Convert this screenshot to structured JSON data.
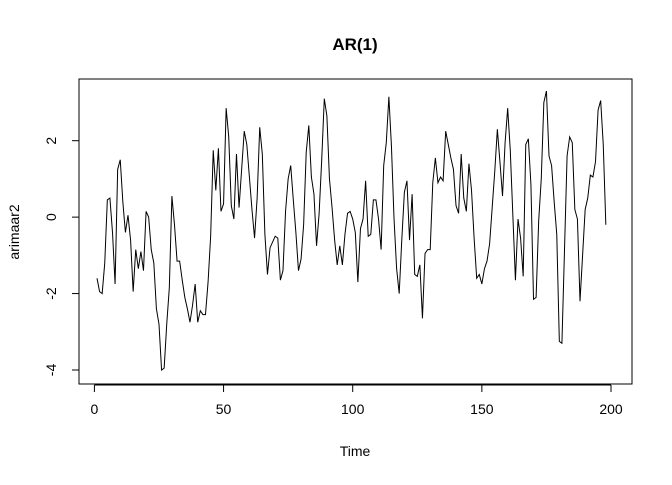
{
  "chart_data": {
    "type": "line",
    "title": "AR(1)",
    "xlabel": "Time",
    "ylabel": "arimaar2",
    "xlim": [
      1,
      200
    ],
    "ylim": [
      -4,
      3.3
    ],
    "x_ticks": [
      0,
      50,
      100,
      150,
      200
    ],
    "y_ticks": [
      -4,
      -2,
      0,
      2
    ],
    "x_tick_labels": [
      "0",
      "50",
      "100",
      "150",
      "200"
    ],
    "y_tick_labels": [
      "-4",
      "-2",
      "0",
      "2"
    ],
    "grid": false,
    "legend": "none",
    "line_color": "#000000",
    "series": [
      {
        "x_start": 1,
        "x_step": 1,
        "values": [
          -1.6,
          -1.95,
          -2.0,
          -1.2,
          0.45,
          0.5,
          -0.4,
          -1.75,
          1.25,
          1.5,
          0.4,
          -0.4,
          0.05,
          -0.6,
          -1.95,
          -0.85,
          -1.35,
          -0.9,
          -1.4,
          0.15,
          0.0,
          -0.85,
          -1.2,
          -2.4,
          -2.8,
          -4.0,
          -3.95,
          -2.8,
          -1.85,
          0.55,
          -0.2,
          -1.15,
          -1.15,
          -1.65,
          -2.1,
          -2.4,
          -2.75,
          -2.3,
          -1.75,
          -2.75,
          -2.45,
          -2.55,
          -2.55,
          -1.7,
          -0.5,
          1.75,
          0.7,
          1.8,
          0.15,
          0.35,
          2.85,
          2.1,
          0.3,
          -0.05,
          1.65,
          0.25,
          1.25,
          2.25,
          1.9,
          1.05,
          0.2,
          -0.55,
          0.5,
          2.35,
          1.65,
          -0.45,
          -1.5,
          -0.8,
          -0.65,
          -0.5,
          -0.55,
          -1.65,
          -1.4,
          0.15,
          1.0,
          1.35,
          0.45,
          -0.4,
          -1.4,
          -1.1,
          -0.2,
          1.7,
          2.4,
          1.05,
          0.6,
          -0.75,
          0.1,
          1.5,
          3.1,
          2.65,
          1.0,
          0.25,
          -0.6,
          -1.25,
          -0.75,
          -1.25,
          -0.45,
          0.1,
          0.15,
          -0.05,
          -0.4,
          -1.7,
          -0.3,
          -0.05,
          0.95,
          -0.5,
          -0.45,
          0.45,
          0.45,
          -0.05,
          -0.85,
          1.35,
          1.95,
          3.15,
          1.85,
          -0.05,
          -1.35,
          -2.0,
          -0.6,
          0.65,
          0.95,
          -0.6,
          0.6,
          -1.5,
          -1.55,
          -1.25,
          -2.65,
          -0.95,
          -0.85,
          -0.85,
          0.9,
          1.55,
          0.9,
          1.05,
          0.95,
          2.25,
          1.9,
          1.55,
          1.25,
          0.3,
          0.1,
          1.65,
          0.5,
          0.15,
          1.4,
          0.7,
          -0.55,
          -1.6,
          -1.5,
          -1.75,
          -1.35,
          -1.15,
          -0.7,
          0.25,
          1.2,
          2.3,
          1.45,
          0.55,
          1.95,
          2.85,
          1.75,
          0.05,
          -1.65,
          -0.05,
          -0.55,
          -1.55,
          1.9,
          2.05,
          0.85,
          -2.15,
          -2.1,
          -0.1,
          1.0,
          3.0,
          3.3,
          1.6,
          1.35,
          0.4,
          -0.45,
          -3.25,
          -3.3,
          -0.85,
          1.6,
          2.1,
          1.95,
          0.2,
          -0.05,
          -2.2,
          -1.0,
          0.2,
          0.5,
          1.1,
          1.05,
          1.45,
          2.8,
          3.05,
          1.9,
          -0.2
        ]
      }
    ]
  }
}
